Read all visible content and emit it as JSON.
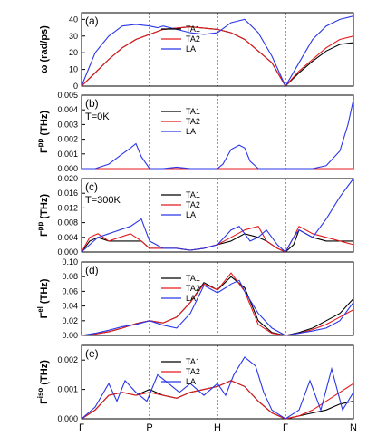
{
  "chart_data": [
    {
      "type": "line",
      "panel_label": "(a)",
      "annotation": "",
      "ylabel": "ω (rad/ps)",
      "ylim": [
        0,
        44
      ],
      "yticks": [
        0,
        10,
        20,
        30,
        40
      ],
      "ytick_labels": [
        "0",
        "10",
        "20",
        "30",
        "40"
      ],
      "x_tick_labels": [
        "Γ",
        "P",
        "H",
        "Γ",
        "N"
      ],
      "legend": [
        "TA1",
        "TA2",
        "LA"
      ],
      "series": [
        {
          "name": "TA1",
          "color": "#000000",
          "x": [
            0,
            0.05,
            0.1,
            0.15,
            0.2,
            0.3,
            0.4,
            0.5,
            0.55,
            0.6,
            0.7,
            0.75,
            0.8,
            0.85,
            0.9,
            0.95,
            1.0
          ],
          "y": [
            0,
            8,
            16,
            23,
            28,
            34,
            35.5,
            34,
            32,
            28,
            14,
            0,
            8,
            15,
            21,
            25,
            26
          ]
        },
        {
          "name": "TA2",
          "color": "#e41a1c",
          "x": [
            0,
            0.05,
            0.1,
            0.15,
            0.2,
            0.3,
            0.4,
            0.5,
            0.55,
            0.6,
            0.7,
            0.75,
            0.8,
            0.85,
            0.9,
            0.95,
            1.0
          ],
          "y": [
            0,
            8,
            16,
            23,
            28,
            34,
            35.5,
            34,
            32,
            28,
            14,
            0,
            9,
            16,
            23,
            28,
            30
          ]
        },
        {
          "name": "LA",
          "color": "#2b36e8",
          "x": [
            0,
            0.05,
            0.1,
            0.15,
            0.2,
            0.25,
            0.28,
            0.3,
            0.35,
            0.4,
            0.45,
            0.5,
            0.55,
            0.6,
            0.65,
            0.7,
            0.75,
            0.8,
            0.85,
            0.9,
            0.95,
            1.0
          ],
          "y": [
            0,
            20,
            30,
            36,
            37,
            36,
            35,
            36,
            34,
            32,
            31,
            32,
            38,
            40,
            32,
            18,
            0,
            14,
            28,
            36,
            40,
            42
          ]
        }
      ]
    },
    {
      "type": "line",
      "panel_label": "(b)",
      "annotation": "T=0K",
      "ylabel": "Γ^pp (THz)",
      "ylim": [
        0,
        0.005
      ],
      "yticks": [
        0,
        0.001,
        0.002,
        0.003,
        0.004,
        0.005
      ],
      "ytick_labels": [
        "0.000",
        "0.001",
        "0.002",
        "0.003",
        "0.004",
        "0.005"
      ],
      "legend": [
        "TA1",
        "TA2",
        "LA"
      ],
      "series": [
        {
          "name": "TA1",
          "color": "#000000",
          "x": [
            0,
            1.0
          ],
          "y": [
            0,
            0
          ]
        },
        {
          "name": "TA2",
          "color": "#e41a1c",
          "x": [
            0,
            1.0
          ],
          "y": [
            0,
            0
          ]
        },
        {
          "name": "LA",
          "color": "#2b36e8",
          "x": [
            0,
            0.05,
            0.1,
            0.15,
            0.18,
            0.2,
            0.22,
            0.25,
            0.3,
            0.35,
            0.4,
            0.45,
            0.5,
            0.52,
            0.55,
            0.58,
            0.6,
            0.62,
            0.65,
            0.7,
            0.75,
            0.8,
            0.85,
            0.9,
            0.95,
            0.98,
            1.0
          ],
          "y": [
            0,
            0,
            0.0003,
            0.001,
            0.0014,
            0.0017,
            0.0008,
            0,
            0,
            0.0001,
            0,
            0,
            0,
            0.0003,
            0.0013,
            0.0016,
            0.0014,
            0.0005,
            0,
            0,
            0,
            0,
            0,
            0.0002,
            0.0012,
            0.003,
            0.0047
          ]
        }
      ]
    },
    {
      "type": "line",
      "panel_label": "(c)",
      "annotation": "T=300K",
      "ylabel": "Γ^pp (THz)",
      "ylim": [
        0,
        0.02
      ],
      "yticks": [
        0,
        0.004,
        0.008,
        0.012,
        0.016,
        0.02
      ],
      "ytick_labels": [
        "0.000",
        "0.004",
        "0.008",
        "0.012",
        "0.016",
        "0.020"
      ],
      "legend": [
        "TA1",
        "TA2",
        "LA"
      ],
      "series": [
        {
          "name": "TA1",
          "color": "#000000",
          "x": [
            0,
            0.03,
            0.06,
            0.1,
            0.14,
            0.18,
            0.22,
            0.25,
            0.3,
            0.35,
            0.4,
            0.45,
            0.5,
            0.55,
            0.6,
            0.65,
            0.68,
            0.72,
            0.75,
            0.78,
            0.8,
            0.85,
            0.9,
            0.95,
            1.0
          ],
          "y": [
            0,
            0.003,
            0.004,
            0.003,
            0.003,
            0.003,
            0.003,
            0.001,
            0.001,
            0.001,
            0.0005,
            0.001,
            0.002,
            0.003,
            0.005,
            0.004,
            0.003,
            0.001,
            0,
            0.002,
            0.006,
            0.004,
            0.003,
            0.003,
            0.003
          ]
        },
        {
          "name": "TA2",
          "color": "#e41a1c",
          "x": [
            0,
            0.03,
            0.06,
            0.1,
            0.14,
            0.18,
            0.22,
            0.25,
            0.3,
            0.35,
            0.4,
            0.45,
            0.5,
            0.55,
            0.6,
            0.65,
            0.68,
            0.72,
            0.75,
            0.78,
            0.8,
            0.85,
            0.9,
            0.95,
            1.0
          ],
          "y": [
            0,
            0.004,
            0.005,
            0.003,
            0.004,
            0.005,
            0.003,
            0.001,
            0.001,
            0.001,
            0.0005,
            0.001,
            0.002,
            0.004,
            0.006,
            0.007,
            0.003,
            0.001,
            0,
            0.004,
            0.007,
            0.005,
            0.004,
            0.003,
            0.002
          ]
        },
        {
          "name": "LA",
          "color": "#2b36e8",
          "x": [
            0,
            0.03,
            0.06,
            0.1,
            0.14,
            0.18,
            0.22,
            0.25,
            0.3,
            0.35,
            0.4,
            0.45,
            0.5,
            0.55,
            0.58,
            0.6,
            0.62,
            0.65,
            0.68,
            0.72,
            0.75,
            0.78,
            0.8,
            0.85,
            0.9,
            0.95,
            1.0
          ],
          "y": [
            0,
            0.002,
            0.004,
            0.005,
            0.006,
            0.007,
            0.009,
            0.003,
            0.001,
            0.001,
            0.0005,
            0.001,
            0.002,
            0.006,
            0.007,
            0.005,
            0.003,
            0.004,
            0.006,
            0.002,
            0,
            0.004,
            0.006,
            0.004,
            0.009,
            0.015,
            0.02
          ]
        }
      ]
    },
    {
      "type": "line",
      "panel_label": "(d)",
      "annotation": "",
      "ylabel": "Γ^el (THz)",
      "ylim": [
        0,
        0.1
      ],
      "yticks": [
        0,
        0.02,
        0.04,
        0.06,
        0.08,
        0.1
      ],
      "ytick_labels": [
        "0.00",
        "0.02",
        "0.04",
        "0.06",
        "0.08",
        "0.10"
      ],
      "legend": [
        "TA1",
        "TA2",
        "LA"
      ],
      "series": [
        {
          "name": "TA1",
          "color": "#000000",
          "x": [
            0,
            0.05,
            0.1,
            0.15,
            0.2,
            0.25,
            0.3,
            0.35,
            0.4,
            0.45,
            0.5,
            0.55,
            0.6,
            0.65,
            0.7,
            0.75,
            0.8,
            0.85,
            0.9,
            0.95,
            1.0
          ],
          "y": [
            0,
            0.002,
            0.005,
            0.01,
            0.016,
            0.02,
            0.017,
            0.025,
            0.045,
            0.072,
            0.062,
            0.08,
            0.065,
            0.02,
            0.004,
            0,
            0.004,
            0.01,
            0.02,
            0.03,
            0.05
          ]
        },
        {
          "name": "TA2",
          "color": "#e41a1c",
          "x": [
            0,
            0.05,
            0.1,
            0.15,
            0.2,
            0.25,
            0.3,
            0.35,
            0.4,
            0.45,
            0.5,
            0.55,
            0.6,
            0.65,
            0.7,
            0.75,
            0.8,
            0.85,
            0.9,
            0.95,
            1.0
          ],
          "y": [
            0,
            0.002,
            0.005,
            0.01,
            0.016,
            0.02,
            0.017,
            0.025,
            0.045,
            0.07,
            0.062,
            0.085,
            0.06,
            0.015,
            0.003,
            0,
            0.003,
            0.008,
            0.015,
            0.025,
            0.035
          ]
        },
        {
          "name": "LA",
          "color": "#2b36e8",
          "x": [
            0,
            0.05,
            0.1,
            0.15,
            0.2,
            0.25,
            0.3,
            0.35,
            0.4,
            0.45,
            0.5,
            0.53,
            0.55,
            0.58,
            0.6,
            0.65,
            0.7,
            0.75,
            0.8,
            0.85,
            0.9,
            0.95,
            1.0
          ],
          "y": [
            0,
            0.003,
            0.007,
            0.012,
            0.015,
            0.02,
            0.014,
            0.01,
            0.03,
            0.068,
            0.058,
            0.065,
            0.07,
            0.075,
            0.06,
            0.03,
            0.01,
            0,
            0.003,
            0.006,
            0.01,
            0.02,
            0.045
          ]
        }
      ]
    },
    {
      "type": "line",
      "panel_label": "(e)",
      "annotation": "",
      "ylabel": "Γ^iso (THz)",
      "ylim": [
        0,
        0.0025
      ],
      "yticks": [
        0,
        0.001,
        0.002
      ],
      "ytick_labels": [
        "0.000",
        "0.001",
        "0.002"
      ],
      "legend": [
        "TA1",
        "TA2",
        "LA"
      ],
      "series": [
        {
          "name": "TA1",
          "color": "#000000",
          "x": [
            0,
            0.05,
            0.1,
            0.15,
            0.2,
            0.25,
            0.3,
            0.35,
            0.4,
            0.45,
            0.5,
            0.55,
            0.6,
            0.65,
            0.7,
            0.75,
            0.8,
            0.85,
            0.9,
            0.95,
            1.0
          ],
          "y": [
            0,
            0.0003,
            0.0008,
            0.0009,
            0.0008,
            0.001,
            0.0008,
            0.0007,
            0.0009,
            0.001,
            0.0011,
            0.0013,
            0.0011,
            0.0006,
            0.0002,
            0,
            0.0001,
            0.0002,
            0.0003,
            0.0005,
            0.0006
          ]
        },
        {
          "name": "TA2",
          "color": "#e41a1c",
          "x": [
            0,
            0.05,
            0.1,
            0.15,
            0.2,
            0.25,
            0.3,
            0.35,
            0.4,
            0.45,
            0.5,
            0.55,
            0.6,
            0.65,
            0.7,
            0.75,
            0.8,
            0.85,
            0.9,
            0.95,
            1.0
          ],
          "y": [
            0,
            0.0003,
            0.0008,
            0.0009,
            0.0008,
            0.0009,
            0.0008,
            0.0007,
            0.0009,
            0.001,
            0.0011,
            0.0013,
            0.0011,
            0.0006,
            0.0002,
            0,
            0.0001,
            0.0003,
            0.0006,
            0.0009,
            0.0012
          ]
        },
        {
          "name": "LA",
          "color": "#2b36e8",
          "x": [
            0,
            0.05,
            0.1,
            0.13,
            0.16,
            0.2,
            0.24,
            0.28,
            0.32,
            0.36,
            0.4,
            0.45,
            0.5,
            0.53,
            0.56,
            0.6,
            0.64,
            0.67,
            0.7,
            0.75,
            0.8,
            0.84,
            0.88,
            0.92,
            0.96,
            1.0
          ],
          "y": [
            0,
            0.0004,
            0.0012,
            0.0006,
            0.0013,
            0.0009,
            0.0006,
            0.0015,
            0.0012,
            0.0009,
            0.0012,
            0.0008,
            0.0012,
            0.0008,
            0.0015,
            0.0021,
            0.0018,
            0.0009,
            0.0003,
            0,
            0.0003,
            0.0013,
            0.0003,
            0.0017,
            0.0003,
            0.0009
          ]
        }
      ]
    }
  ]
}
